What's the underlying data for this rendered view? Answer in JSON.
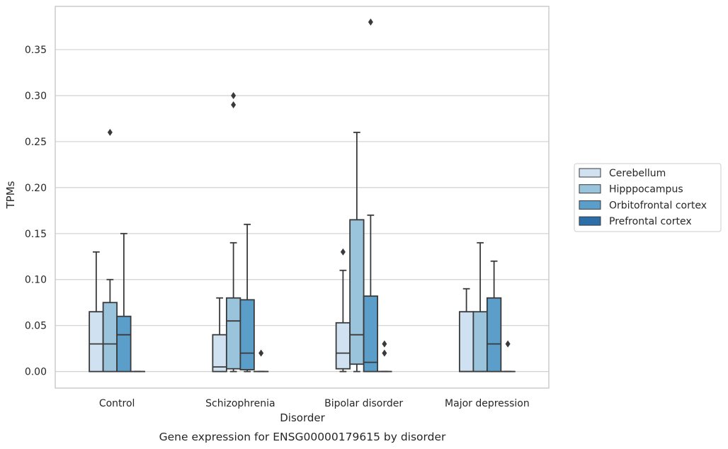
{
  "chart_data": {
    "type": "box",
    "caption": "Gene expression for ENSG00000179615 by disorder",
    "xlabel": "Disorder",
    "ylabel": "TPMs",
    "ylim": [
      -0.018,
      0.397
    ],
    "yticks": [
      "0.00",
      "0.05",
      "0.10",
      "0.15",
      "0.20",
      "0.25",
      "0.30",
      "0.35"
    ],
    "grid": "horizontal",
    "legend_position": "right",
    "categories": [
      "Control",
      "Schizophrenia",
      "Bipolar disorder",
      "Major depression"
    ],
    "series": [
      {
        "name": "Cerebellum",
        "color": "#d0e1f2",
        "boxes": [
          {
            "category": "Control",
            "whisker_low": 0.0,
            "q1": 0.0,
            "median": 0.03,
            "q3": 0.065,
            "whisker_high": 0.13,
            "outliers": []
          },
          {
            "category": "Schizophrenia",
            "whisker_low": 0.0,
            "q1": 0.0,
            "median": 0.005,
            "q3": 0.04,
            "whisker_high": 0.08,
            "outliers": []
          },
          {
            "category": "Bipolar disorder",
            "whisker_low": 0.0,
            "q1": 0.003,
            "median": 0.02,
            "q3": 0.053,
            "whisker_high": 0.11,
            "outliers": [
              0.13
            ]
          },
          {
            "category": "Major depression",
            "whisker_low": 0.0,
            "q1": 0.0,
            "median": 0.0,
            "q3": 0.065,
            "whisker_high": 0.09,
            "outliers": []
          }
        ]
      },
      {
        "name": "Hipppocampus",
        "color": "#9ac3dc",
        "boxes": [
          {
            "category": "Control",
            "whisker_low": 0.0,
            "q1": 0.0,
            "median": 0.03,
            "q3": 0.075,
            "whisker_high": 0.1,
            "outliers": [
              0.26
            ]
          },
          {
            "category": "Schizophrenia",
            "whisker_low": 0.0,
            "q1": 0.003,
            "median": 0.055,
            "q3": 0.08,
            "whisker_high": 0.14,
            "outliers": [
              0.29,
              0.3
            ]
          },
          {
            "category": "Bipolar disorder",
            "whisker_low": 0.0,
            "q1": 0.008,
            "median": 0.04,
            "q3": 0.165,
            "whisker_high": 0.26,
            "outliers": []
          },
          {
            "category": "Major depression",
            "whisker_low": 0.0,
            "q1": 0.0,
            "median": 0.0,
            "q3": 0.065,
            "whisker_high": 0.14,
            "outliers": []
          }
        ]
      },
      {
        "name": "Orbitofrontal cortex",
        "color": "#5a9ec9",
        "boxes": [
          {
            "category": "Control",
            "whisker_low": 0.0,
            "q1": 0.0,
            "median": 0.04,
            "q3": 0.06,
            "whisker_high": 0.15,
            "outliers": []
          },
          {
            "category": "Schizophrenia",
            "whisker_low": 0.0,
            "q1": 0.002,
            "median": 0.02,
            "q3": 0.078,
            "whisker_high": 0.16,
            "outliers": []
          },
          {
            "category": "Bipolar disorder",
            "whisker_low": 0.0,
            "q1": 0.0,
            "median": 0.01,
            "q3": 0.082,
            "whisker_high": 0.17,
            "outliers": [
              0.38
            ]
          },
          {
            "category": "Major depression",
            "whisker_low": 0.0,
            "q1": 0.0,
            "median": 0.03,
            "q3": 0.08,
            "whisker_high": 0.12,
            "outliers": []
          }
        ]
      },
      {
        "name": "Prefrontal cortex",
        "color": "#2b6ea8",
        "boxes": [
          {
            "category": "Control",
            "whisker_low": 0.0,
            "q1": 0.0,
            "median": 0.0,
            "q3": 0.0,
            "whisker_high": 0.0,
            "outliers": []
          },
          {
            "category": "Schizophrenia",
            "whisker_low": 0.0,
            "q1": 0.0,
            "median": 0.0,
            "q3": 0.0,
            "whisker_high": 0.0,
            "outliers": [
              0.02
            ]
          },
          {
            "category": "Bipolar disorder",
            "whisker_low": 0.0,
            "q1": 0.0,
            "median": 0.0,
            "q3": 0.0,
            "whisker_high": 0.0,
            "outliers": [
              0.02,
              0.03
            ]
          },
          {
            "category": "Major depression",
            "whisker_low": 0.0,
            "q1": 0.0,
            "median": 0.0,
            "q3": 0.0,
            "whisker_high": 0.0,
            "outliers": [
              0.03
            ]
          }
        ]
      }
    ]
  }
}
